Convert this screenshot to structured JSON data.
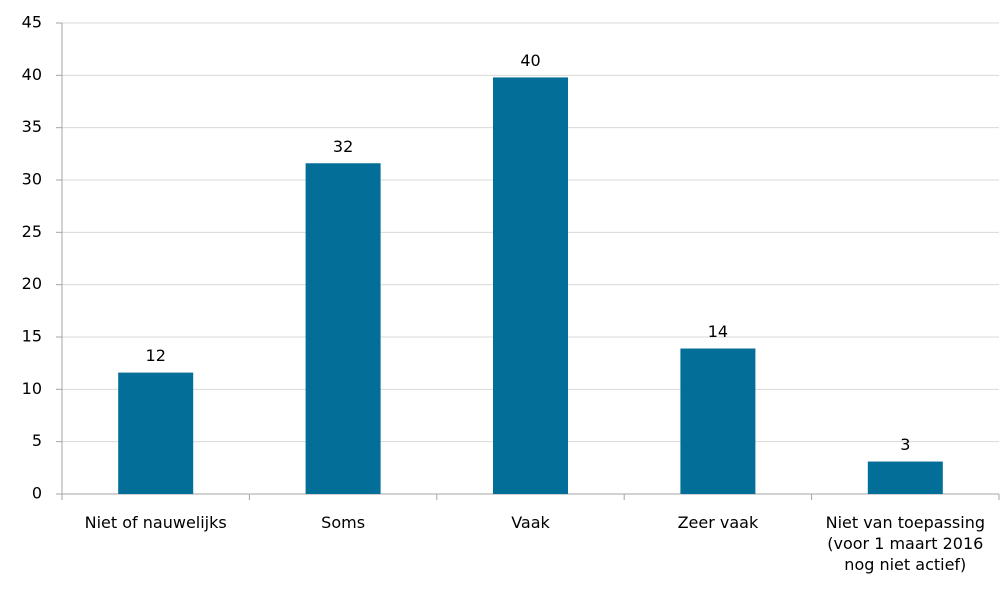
{
  "chart_data": {
    "type": "bar",
    "categories": [
      "Niet of nauwelijks",
      "Soms",
      "Vaak",
      "Zeer vaak",
      "Niet van toepassing (voor 1 maart 2016 nog niet actief)"
    ],
    "values": [
      11.6,
      31.6,
      39.8,
      13.9,
      3.1
    ],
    "value_labels": [
      "12",
      "32",
      "40",
      "14",
      "3"
    ],
    "color": "#036e97",
    "ylim": [
      0,
      45
    ],
    "yticks": [
      0,
      5,
      10,
      15,
      20,
      25,
      30,
      35,
      40,
      45
    ],
    "grid": true
  }
}
